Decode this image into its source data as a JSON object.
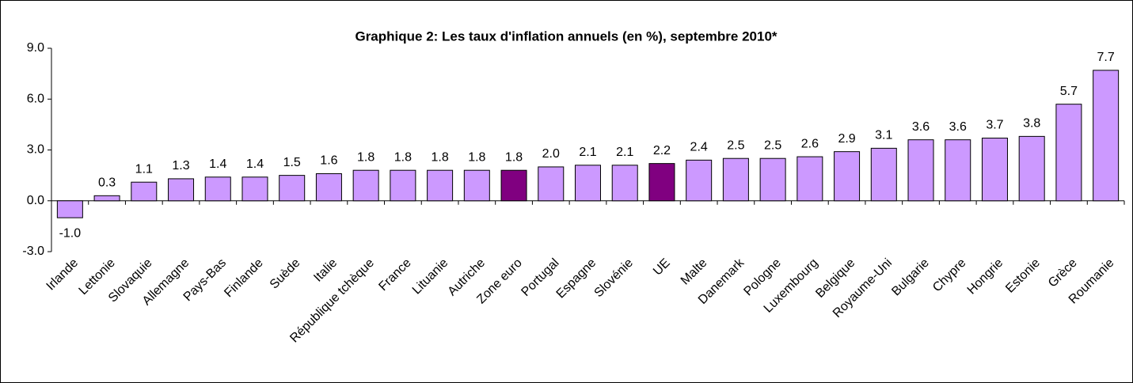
{
  "chart_data": {
    "type": "bar",
    "title": "Graphique 2: Les taux d'inflation annuels (en %), septembre 2010*",
    "categories": [
      "Irlande",
      "Lettonie",
      "Slovaquie",
      "Allemagne",
      "Pays-Bas",
      "Finlande",
      "Suède",
      "Italie",
      "République tchèque",
      "France",
      "Lituanie",
      "Autriche",
      "Zone euro",
      "Portugal",
      "Espagne",
      "Slovénie",
      "UE",
      "Malte",
      "Danemark",
      "Pologne",
      "Luxembourg",
      "Belgique",
      "Royaume-Uni",
      "Bulgarie",
      "Chypre",
      "Hongrie",
      "Estonie",
      "Grèce",
      "Roumanie"
    ],
    "values": [
      -1.0,
      0.3,
      1.1,
      1.3,
      1.4,
      1.4,
      1.5,
      1.6,
      1.8,
      1.8,
      1.8,
      1.8,
      1.8,
      2.0,
      2.1,
      2.1,
      2.2,
      2.4,
      2.5,
      2.5,
      2.6,
      2.9,
      3.1,
      3.6,
      3.6,
      3.7,
      3.8,
      5.7,
      7.7
    ],
    "value_labels": [
      "-1.0",
      "0.3",
      "1.1",
      "1.3",
      "1.4",
      "1.4",
      "1.5",
      "1.6",
      "1.8",
      "1.8",
      "1.8",
      "1.8",
      "1.8",
      "2.0",
      "2.1",
      "2.1",
      "2.2",
      "2.4",
      "2.5",
      "2.5",
      "2.6",
      "2.9",
      "3.1",
      "3.6",
      "3.6",
      "3.7",
      "3.8",
      "5.7",
      "7.7"
    ],
    "colors": [
      "#cc99ff",
      "#cc99ff",
      "#cc99ff",
      "#cc99ff",
      "#cc99ff",
      "#cc99ff",
      "#cc99ff",
      "#cc99ff",
      "#cc99ff",
      "#cc99ff",
      "#cc99ff",
      "#cc99ff",
      "#800080",
      "#cc99ff",
      "#cc99ff",
      "#cc99ff",
      "#800080",
      "#cc99ff",
      "#cc99ff",
      "#cc99ff",
      "#cc99ff",
      "#cc99ff",
      "#cc99ff",
      "#cc99ff",
      "#cc99ff",
      "#cc99ff",
      "#cc99ff",
      "#cc99ff",
      "#cc99ff"
    ],
    "ylim": [
      -3,
      9
    ],
    "yticks": [
      {
        "value": -3,
        "label": "-3.0"
      },
      {
        "value": 0,
        "label": "0.0"
      },
      {
        "value": 3,
        "label": "3.0"
      },
      {
        "value": 6,
        "label": "6.0"
      },
      {
        "value": 9,
        "label": "9.0"
      }
    ]
  }
}
